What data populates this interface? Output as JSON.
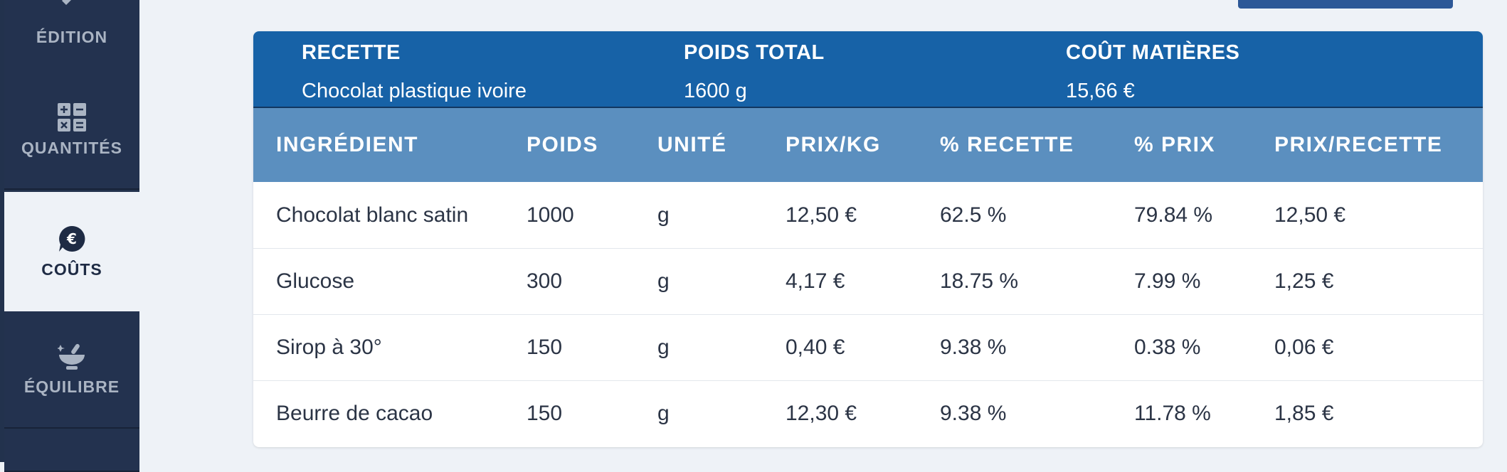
{
  "sidebar": {
    "items": [
      {
        "label": "ÉDITION",
        "icon": "edit-tools-icon",
        "active": false
      },
      {
        "label": "QUANTITÉS",
        "icon": "calculator-icon",
        "active": false
      },
      {
        "label": "COÛTS",
        "icon": "euro-bubble-icon",
        "active": true
      },
      {
        "label": "ÉQUILIBRE",
        "icon": "mortar-pestle-icon",
        "active": false
      }
    ]
  },
  "summary": {
    "recette_label": "RECETTE",
    "recette_value": "Chocolat plastique ivoire",
    "poids_label": "POIDS TOTAL",
    "poids_value": "1600 g",
    "cout_label": "COÛT MATIÈRES",
    "cout_value": "15,66 €"
  },
  "table": {
    "columns": [
      "INGRÉDIENT",
      "POIDS",
      "UNITÉ",
      "PRIX/KG",
      "% RECETTE",
      "% PRIX",
      "PRIX/RECETTE"
    ],
    "rows": [
      [
        "Chocolat blanc satin",
        "1000",
        "g",
        "12,50 €",
        "62.5 %",
        "79.84 %",
        "12,50 €"
      ],
      [
        "Glucose",
        "300",
        "g",
        "4,17 €",
        "18.75 %",
        "7.99 %",
        "1,25 €"
      ],
      [
        "Sirop à 30°",
        "150",
        "g",
        "0,40 €",
        "9.38 %",
        "0.38 %",
        "0,06 €"
      ],
      [
        "Beurre de cacao",
        "150",
        "g",
        "12,30 €",
        "9.38 %",
        "11.78 %",
        "1,85 €"
      ]
    ]
  },
  "colors": {
    "sidebar_bg": "#22324d",
    "summary_bg": "#1762a7",
    "table_header_bg": "#5b8fbf",
    "page_bg": "#eef2f7"
  }
}
